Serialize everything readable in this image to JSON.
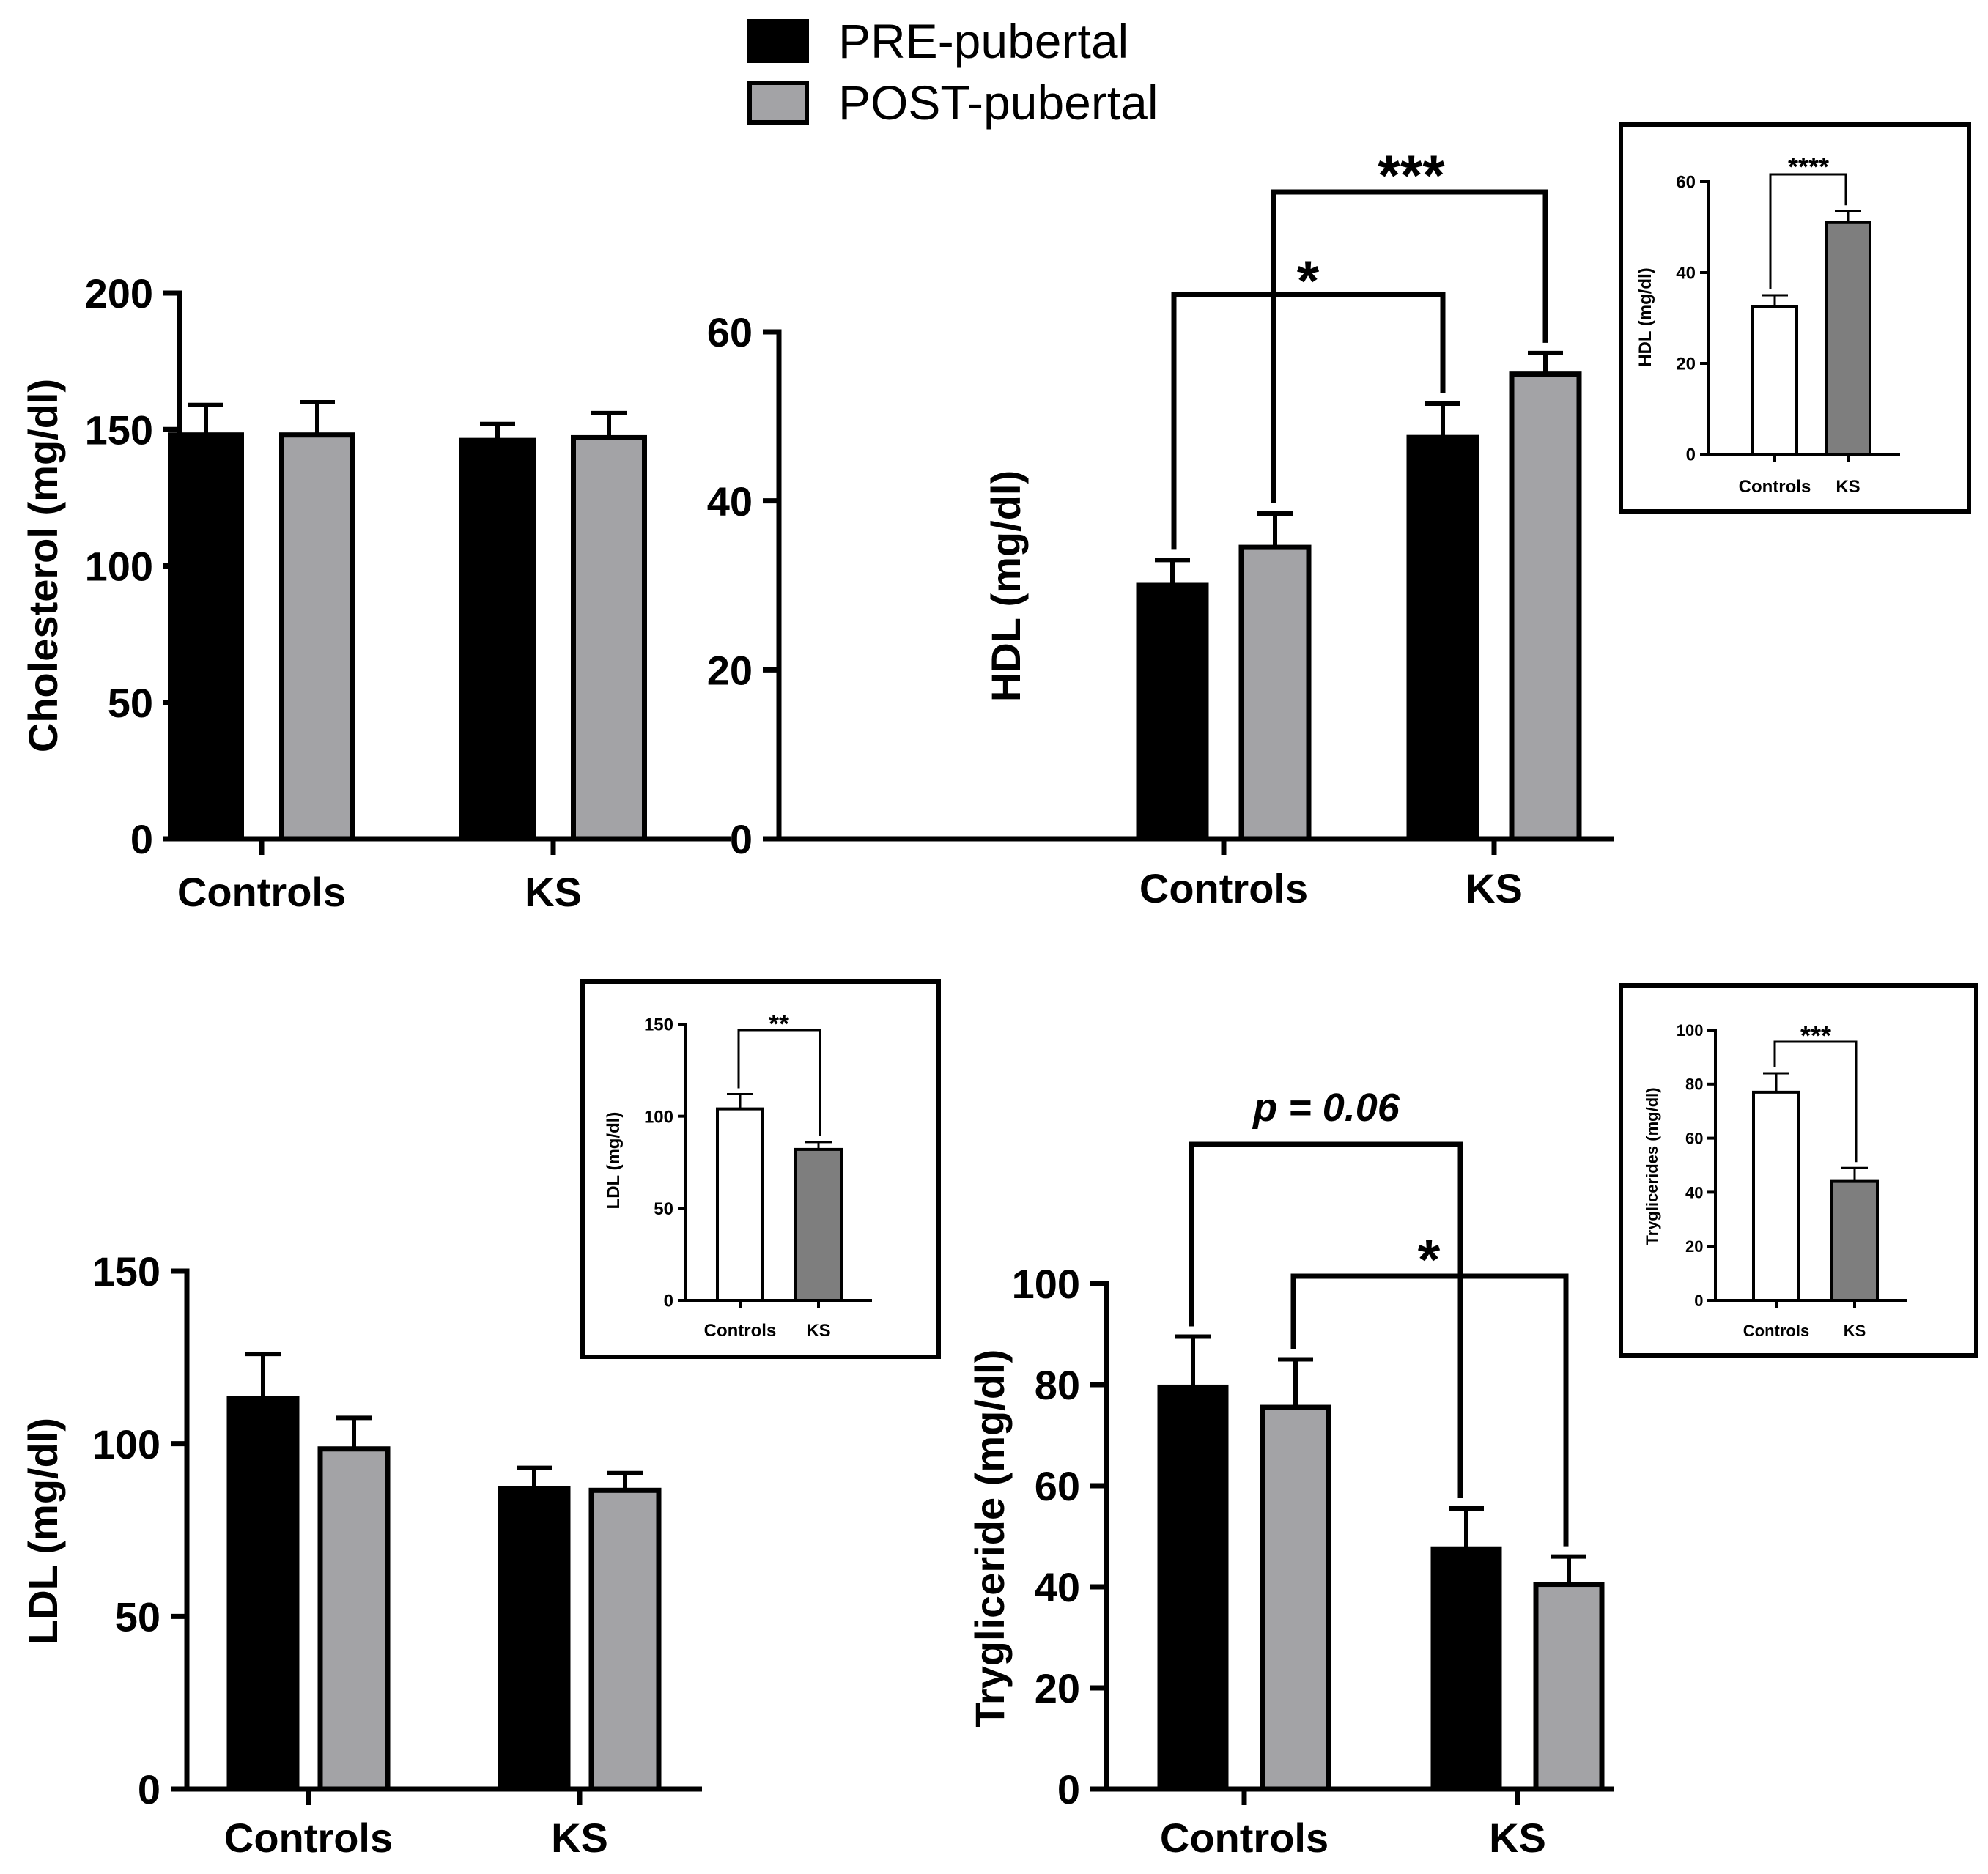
{
  "legend": {
    "pre": {
      "label": "PRE-pubertal",
      "color": "#000000"
    },
    "post": {
      "label": "POST-pubertal",
      "color": "#a3a3a6"
    }
  },
  "colors": {
    "pre": "#000000",
    "post": "#a3a3a6",
    "inset_controls": "#ffffff",
    "inset_ks": "#7e7e7e"
  },
  "chart_data": [
    {
      "id": "cholesterol",
      "type": "bar",
      "ylabel": "Cholesterol (mg/dl)",
      "categories": [
        "Controls",
        "KS"
      ],
      "ylim": [
        0,
        200
      ],
      "yticks": [
        0,
        50,
        100,
        150,
        200
      ],
      "series": [
        {
          "name": "PRE-pubertal",
          "values": [
            148,
            146
          ],
          "errors": [
            11,
            6
          ]
        },
        {
          "name": "POST-pubertal",
          "values": [
            148,
            147
          ],
          "errors": [
            12,
            9
          ]
        }
      ],
      "significance": []
    },
    {
      "id": "hdl",
      "type": "bar",
      "ylabel": "HDL (mg/dl)",
      "categories": [
        "Controls",
        "KS"
      ],
      "ylim": [
        0,
        60
      ],
      "yticks": [
        0,
        20,
        40,
        60
      ],
      "series": [
        {
          "name": "PRE-pubertal",
          "values": [
            30,
            47.5
          ],
          "errors": [
            3,
            4
          ]
        },
        {
          "name": "POST-pubertal",
          "values": [
            34.5,
            55
          ],
          "errors": [
            4,
            2.5
          ]
        }
      ],
      "significance": [
        {
          "from": "Controls PRE-pubertal",
          "to": "KS PRE-pubertal",
          "label": "*"
        },
        {
          "from": "Controls POST-pubertal",
          "to": "KS POST-pubertal",
          "label": "***"
        }
      ]
    },
    {
      "id": "ldl",
      "type": "bar",
      "ylabel": "LDL (mg/dl)",
      "categories": [
        "Controls",
        "KS"
      ],
      "ylim": [
        0,
        150
      ],
      "yticks": [
        0,
        50,
        100,
        150
      ],
      "series": [
        {
          "name": "PRE-pubertal",
          "values": [
            113,
            87
          ],
          "errors": [
            13,
            6
          ]
        },
        {
          "name": "POST-pubertal",
          "values": [
            98.5,
            86.5
          ],
          "errors": [
            9,
            5
          ]
        }
      ],
      "significance": []
    },
    {
      "id": "trygliceride",
      "type": "bar",
      "ylabel": "Trygliceride (mg/dl)",
      "categories": [
        "Controls",
        "KS"
      ],
      "ylim": [
        0,
        100
      ],
      "yticks": [
        0,
        20,
        40,
        60,
        80,
        100
      ],
      "series": [
        {
          "name": "PRE-pubertal",
          "values": [
            79.5,
            47.5
          ],
          "errors": [
            10,
            8
          ]
        },
        {
          "name": "POST-pubertal",
          "values": [
            75.5,
            40.5
          ],
          "errors": [
            9.5,
            5.5
          ]
        }
      ],
      "significance": [
        {
          "from": "Controls PRE-pubertal",
          "to": "KS PRE-pubertal",
          "label": "p = 0.06"
        },
        {
          "from": "Controls POST-pubertal",
          "to": "KS POST-pubertal",
          "label": "*"
        }
      ]
    },
    {
      "id": "hdl_inset",
      "type": "bar",
      "ylabel": "HDL (mg/dl)",
      "categories": [
        "Controls",
        "KS"
      ],
      "ylim": [
        0,
        60
      ],
      "yticks": [
        0,
        20,
        40,
        60
      ],
      "values": [
        32.5,
        51
      ],
      "errors": [
        2.5,
        2.5
      ],
      "significance": [
        {
          "from": "Controls",
          "to": "KS",
          "label": "****"
        }
      ]
    },
    {
      "id": "ldl_inset",
      "type": "bar",
      "ylabel": "LDL (mg/dl)",
      "categories": [
        "Controls",
        "KS"
      ],
      "ylim": [
        0,
        150
      ],
      "yticks": [
        0,
        50,
        100,
        150
      ],
      "values": [
        104,
        82
      ],
      "errors": [
        8,
        4
      ],
      "significance": [
        {
          "from": "Controls",
          "to": "KS",
          "label": "**"
        }
      ]
    },
    {
      "id": "trygliceride_inset",
      "type": "bar",
      "ylabel": "Tryglicerides (mg/dl)",
      "categories": [
        "Controls",
        "KS"
      ],
      "ylim": [
        0,
        100
      ],
      "yticks": [
        0,
        20,
        40,
        60,
        80,
        100
      ],
      "values": [
        77,
        44
      ],
      "errors": [
        7,
        5
      ],
      "significance": [
        {
          "from": "Controls",
          "to": "KS",
          "label": "***"
        }
      ]
    }
  ]
}
